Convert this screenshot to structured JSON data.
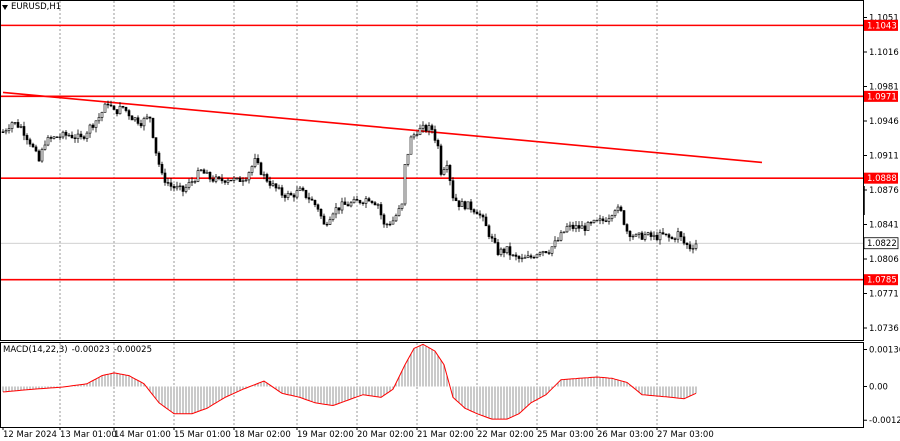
{
  "symbol_title": "EURUSD,H1",
  "macd": {
    "name": "MACD(14,22,3)",
    "main_value": "-0.00023",
    "signal_value": "-0.00025"
  },
  "colors": {
    "level": "#ff0000",
    "trend": "#ff0000",
    "grid": "#7f7f7f",
    "candle": "#000000",
    "macd_hist": "#a6a6a6",
    "macd_signal": "#ff0000",
    "label_bg": "#ff0000"
  },
  "chart_data": {
    "type": "candlestick",
    "symbol": "EURUSD",
    "timeframe": "H1",
    "price_ticks": [
      "1.1051",
      "1.1016",
      "1.0981",
      "1.0946",
      "1.0911",
      "1.0876",
      "1.0841",
      "1.0806",
      "1.0771",
      "1.0736"
    ],
    "horizontal_levels": [
      {
        "value": 1.1043,
        "label": "1.1043"
      },
      {
        "value": 1.0971,
        "label": "1.0971"
      },
      {
        "value": 1.0888,
        "label": "1.0888"
      },
      {
        "value": 1.0785,
        "label": "1.0785"
      }
    ],
    "current_price": {
      "value": 1.0822,
      "label": "1.0822"
    },
    "trendline": {
      "start": {
        "bar": 0,
        "price": 1.0975
      },
      "end": {
        "bar": 253,
        "price": 1.0904
      }
    },
    "time_labels": [
      {
        "bar": 0,
        "label": "12 Mar 2024"
      },
      {
        "bar": 19,
        "label": "13 Mar 01:00"
      },
      {
        "bar": 37,
        "label": "14 Mar 01:00"
      },
      {
        "bar": 57,
        "label": "15 Mar 01:00"
      },
      {
        "bar": 77,
        "label": "18 Mar 02:00"
      },
      {
        "bar": 98,
        "label": "19 Mar 02:00"
      },
      {
        "bar": 118,
        "label": "20 Mar 02:00"
      },
      {
        "bar": 138,
        "label": "21 Mar 02:00"
      },
      {
        "bar": 158,
        "label": "22 Mar 02:00"
      },
      {
        "bar": 178,
        "label": "25 Mar 03:00"
      },
      {
        "bar": 198,
        "label": "26 Mar 03:00"
      },
      {
        "bar": 218,
        "label": "27 Mar 03:00"
      }
    ],
    "price_path": [
      [
        0,
        1.0935
      ],
      [
        3,
        1.0945
      ],
      [
        6,
        1.094
      ],
      [
        9,
        1.0925
      ],
      [
        12,
        1.0905
      ],
      [
        14,
        1.0925
      ],
      [
        18,
        1.093
      ],
      [
        22,
        1.0932
      ],
      [
        26,
        1.0928
      ],
      [
        29,
        1.094
      ],
      [
        32,
        1.095
      ],
      [
        35,
        1.0965
      ],
      [
        37,
        1.0955
      ],
      [
        40,
        1.096
      ],
      [
        43,
        1.095
      ],
      [
        46,
        1.0945
      ],
      [
        49,
        1.095
      ],
      [
        51,
        1.0915
      ],
      [
        53,
        1.089
      ],
      [
        56,
        1.088
      ],
      [
        60,
        1.0875
      ],
      [
        63,
        1.0885
      ],
      [
        66,
        1.0895
      ],
      [
        69,
        1.0888
      ],
      [
        72,
        1.0885
      ],
      [
        75,
        1.0888
      ],
      [
        78,
        1.0885
      ],
      [
        81,
        1.089
      ],
      [
        84,
        1.0905
      ],
      [
        87,
        1.089
      ],
      [
        90,
        1.088
      ],
      [
        93,
        1.0872
      ],
      [
        96,
        1.087
      ],
      [
        99,
        1.0875
      ],
      [
        102,
        1.0868
      ],
      [
        105,
        1.0858
      ],
      [
        107,
        1.084
      ],
      [
        110,
        1.0855
      ],
      [
        113,
        1.086
      ],
      [
        116,
        1.0862
      ],
      [
        119,
        1.0865
      ],
      [
        122,
        1.0868
      ],
      [
        125,
        1.0862
      ],
      [
        127,
        1.084
      ],
      [
        130,
        1.0845
      ],
      [
        133,
        1.086
      ],
      [
        134,
        1.09
      ],
      [
        136,
        1.0928
      ],
      [
        138,
        1.0936
      ],
      [
        140,
        1.0938
      ],
      [
        143,
        1.0938
      ],
      [
        145,
        1.092
      ],
      [
        146,
        1.0895
      ],
      [
        148,
        1.0905
      ],
      [
        150,
        1.087
      ],
      [
        152,
        1.0862
      ],
      [
        155,
        1.086
      ],
      [
        158,
        1.0855
      ],
      [
        160,
        1.0845
      ],
      [
        163,
        1.0825
      ],
      [
        165,
        1.0813
      ],
      [
        168,
        1.0815
      ],
      [
        170,
        1.0808
      ],
      [
        173,
        1.0805
      ],
      [
        176,
        1.0808
      ],
      [
        179,
        1.0815
      ],
      [
        182,
        1.0815
      ],
      [
        185,
        1.0825
      ],
      [
        188,
        1.0838
      ],
      [
        191,
        1.0838
      ],
      [
        194,
        1.0838
      ],
      [
        197,
        1.0842
      ],
      [
        200,
        1.0845
      ],
      [
        202,
        1.085
      ],
      [
        204,
        1.0858
      ],
      [
        206,
        1.0853
      ],
      [
        208,
        1.0835
      ],
      [
        211,
        1.0828
      ],
      [
        214,
        1.083
      ],
      [
        217,
        1.0828
      ],
      [
        220,
        1.083
      ],
      [
        223,
        1.0826
      ],
      [
        225,
        1.0832
      ],
      [
        227,
        1.0822
      ],
      [
        229,
        1.0818
      ],
      [
        231,
        1.0822
      ]
    ],
    "macd_ticks": [
      "0.00136",
      "0.00",
      "-0.00124"
    ],
    "macd_path": [
      [
        0,
        -0.0002
      ],
      [
        10,
        -0.0001
      ],
      [
        20,
        -2e-05
      ],
      [
        28,
        0.0001
      ],
      [
        33,
        0.0004
      ],
      [
        37,
        0.0005
      ],
      [
        42,
        0.0004
      ],
      [
        47,
        0.0001
      ],
      [
        52,
        -0.0006
      ],
      [
        57,
        -0.001
      ],
      [
        63,
        -0.001
      ],
      [
        68,
        -0.0008
      ],
      [
        74,
        -0.0004
      ],
      [
        80,
        -0.0001
      ],
      [
        87,
        0.0002
      ],
      [
        93,
        -0.00025
      ],
      [
        99,
        -0.0004
      ],
      [
        104,
        -0.0006
      ],
      [
        110,
        -0.0007
      ],
      [
        115,
        -0.0005
      ],
      [
        120,
        -0.0003
      ],
      [
        126,
        -0.0004
      ],
      [
        130,
        -0.0001
      ],
      [
        134,
        0.0008
      ],
      [
        137,
        0.0014
      ],
      [
        140,
        0.00155
      ],
      [
        144,
        0.0013
      ],
      [
        147,
        0.0008
      ],
      [
        150,
        -0.0004
      ],
      [
        154,
        -0.0008
      ],
      [
        158,
        -0.001
      ],
      [
        163,
        -0.0012
      ],
      [
        168,
        -0.0012
      ],
      [
        172,
        -0.001
      ],
      [
        176,
        -0.0006
      ],
      [
        181,
        -0.0003
      ],
      [
        186,
        0.00025
      ],
      [
        192,
        0.0003
      ],
      [
        198,
        0.00035
      ],
      [
        203,
        0.0003
      ],
      [
        208,
        0.00015
      ],
      [
        213,
        -0.0003
      ],
      [
        218,
        -0.00035
      ],
      [
        223,
        -0.0004
      ],
      [
        227,
        -0.00045
      ],
      [
        231,
        -0.00025
      ]
    ]
  }
}
